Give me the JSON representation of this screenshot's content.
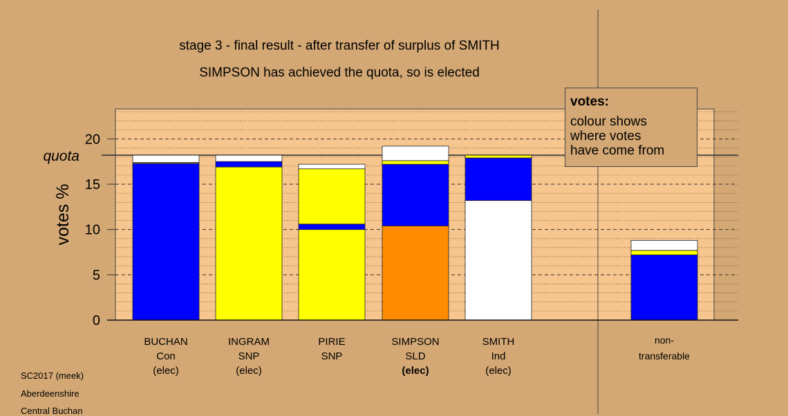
{
  "header": {
    "title": "stage 3 - final result - after transfer of surplus of SMITH",
    "subtitle": "SIMPSON has achieved the quota, so is elected"
  },
  "legend": {
    "heading": "votes:",
    "body": "colour shows\nwhere votes\nhave come from"
  },
  "footer": {
    "line1": "SC2017 (meek)",
    "line2": "Aberdeenshire",
    "line3": "Central Buchan"
  },
  "colors": {
    "background": "#d4a874",
    "plot_area": "#f7c68e",
    "Con": "#0000ff",
    "SNP": "#ffff00",
    "SLD": "#ff8c00",
    "Ind": "#ffffff"
  },
  "chart_data": {
    "type": "bar",
    "stacked": true,
    "ylabel": "votes %",
    "ylim": [
      0,
      23.3
    ],
    "yticks": [
      0,
      5,
      10,
      15,
      20
    ],
    "grid": true,
    "quota": {
      "label": "quota",
      "value": 18.2
    },
    "bars": [
      {
        "lines": [
          "BUCHAN",
          "Con",
          "(elec)"
        ],
        "bold_third": false,
        "segments": [
          {
            "source": "Con",
            "value": 17.3
          },
          {
            "source": "SNP",
            "value": 0.1
          },
          {
            "source": "Ind",
            "value": 0.8
          }
        ]
      },
      {
        "lines": [
          "INGRAM",
          "SNP",
          "(elec)"
        ],
        "bold_third": false,
        "segments": [
          {
            "source": "SNP",
            "value": 16.9
          },
          {
            "source": "Con",
            "value": 0.6
          },
          {
            "source": "Ind",
            "value": 0.7
          }
        ]
      },
      {
        "lines": [
          "PIRIE",
          "SNP",
          ""
        ],
        "bold_third": false,
        "segments": [
          {
            "source": "SNP",
            "value": 10.0
          },
          {
            "source": "Con",
            "value": 0.6
          },
          {
            "source": "SNP",
            "value": 6.1
          },
          {
            "source": "Ind",
            "value": 0.5
          }
        ]
      },
      {
        "lines": [
          "SIMPSON",
          "SLD",
          "(elec)"
        ],
        "bold_third": true,
        "segments": [
          {
            "source": "SLD",
            "value": 10.4
          },
          {
            "source": "Con",
            "value": 6.8
          },
          {
            "source": "SNP",
            "value": 0.4
          },
          {
            "source": "Ind",
            "value": 1.6
          }
        ]
      },
      {
        "lines": [
          "SMITH",
          "Ind",
          "(elec)"
        ],
        "bold_third": false,
        "segments": [
          {
            "source": "Ind",
            "value": 13.2
          },
          {
            "source": "Con",
            "value": 4.7
          },
          {
            "source": "SNP",
            "value": 0.3
          }
        ]
      },
      {
        "lines": [
          "non-",
          "transferable",
          ""
        ],
        "bold_third": false,
        "nontransferable": true,
        "segments": [
          {
            "source": "Con",
            "value": 7.2
          },
          {
            "source": "SNP",
            "value": 0.5
          },
          {
            "source": "Ind",
            "value": 1.1
          }
        ]
      }
    ]
  }
}
